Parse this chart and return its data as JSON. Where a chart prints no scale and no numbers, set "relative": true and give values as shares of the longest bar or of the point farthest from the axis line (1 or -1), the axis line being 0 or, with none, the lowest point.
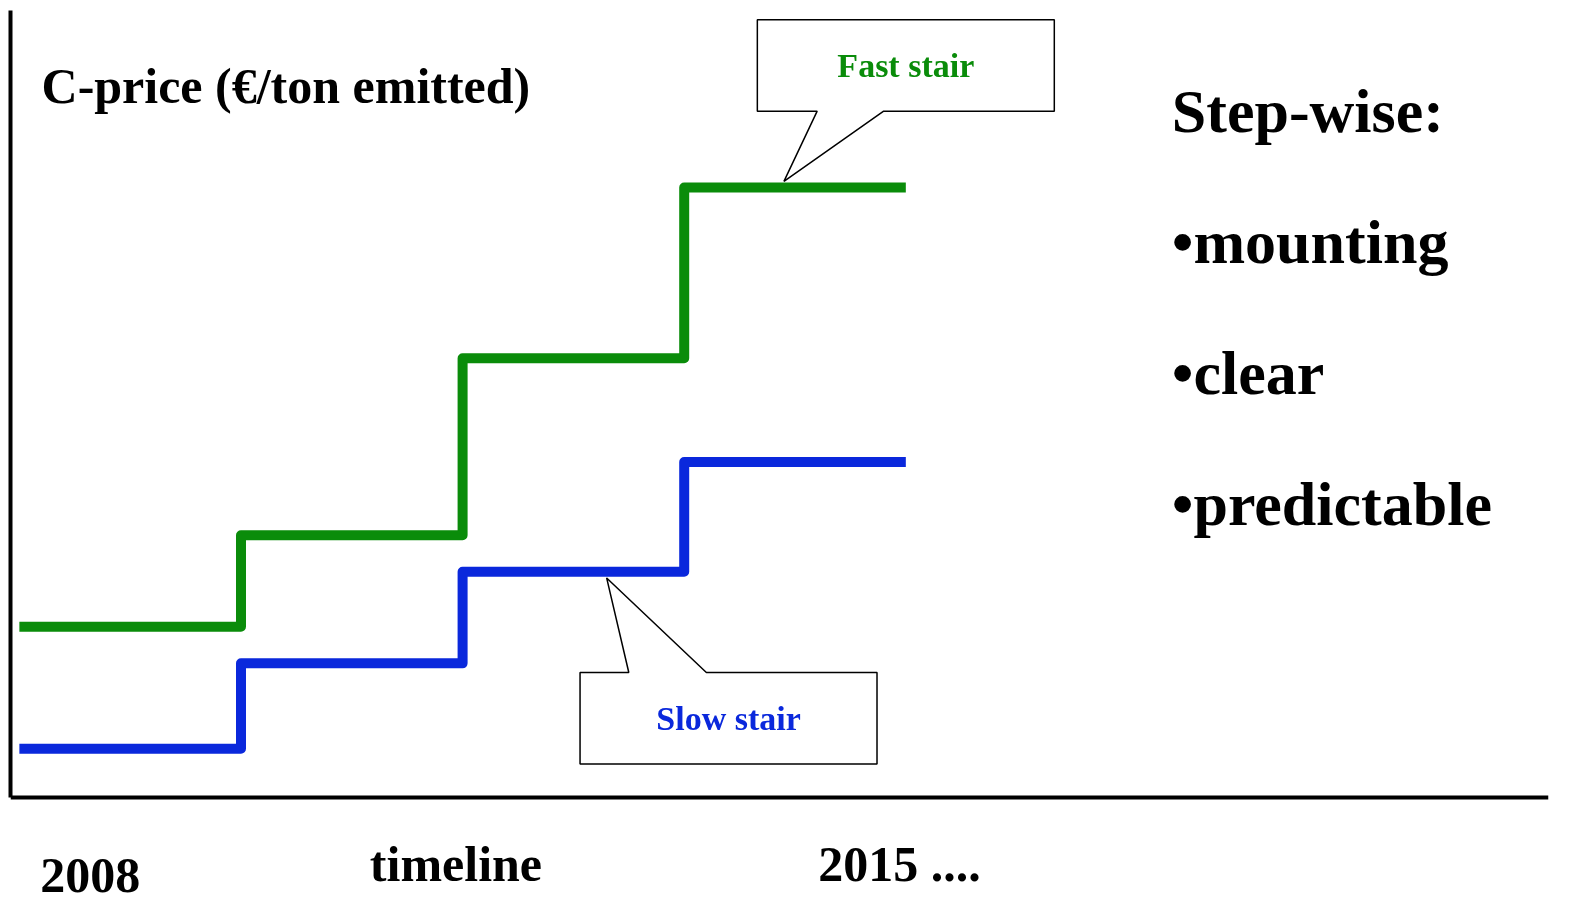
{
  "chart_data": {
    "type": "step",
    "relative": true,
    "ylabel": "C-price (€/ton emitted)",
    "xlabel": "timeline",
    "categories": [
      null,
      null,
      null,
      null,
      null
    ],
    "series": [
      {
        "name": "Fast stair",
        "color": "#0a8c0a",
        "values": [
          0.28,
          0.43,
          0.72,
          1.0,
          1.0
        ]
      },
      {
        "name": "Slow stair",
        "color": "#0a28dc",
        "values": [
          0.08,
          0.22,
          0.37,
          0.55,
          0.55
        ]
      }
    ],
    "annotations": [
      "Step-wise:",
      "•mounting",
      "•clear",
      "•predictable",
      "2008",
      "2015  ...."
    ]
  }
}
